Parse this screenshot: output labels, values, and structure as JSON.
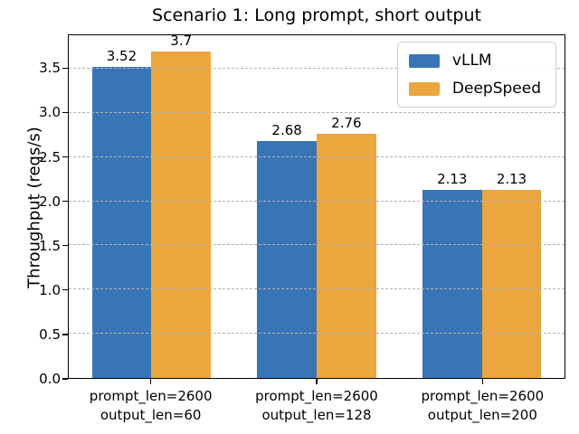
{
  "chart_data": {
    "type": "bar",
    "title": "Scenario 1: Long prompt, short output",
    "xlabel": "",
    "ylabel": "Throughput (reqs/s)",
    "categories": [
      [
        "prompt_len=2600",
        "output_len=60"
      ],
      [
        "prompt_len=2600",
        "output_len=128"
      ],
      [
        "prompt_len=2600",
        "output_len=200"
      ]
    ],
    "series": [
      {
        "name": "vLLM",
        "color": "#3875b7",
        "values": [
          3.52,
          2.68,
          2.13
        ],
        "value_labels": [
          "3.52",
          "2.68",
          "2.13"
        ]
      },
      {
        "name": "DeepSpeed",
        "color": "#eba63d",
        "values": [
          3.7,
          2.76,
          2.13
        ],
        "value_labels": [
          "3.7",
          "2.76",
          "2.13"
        ]
      }
    ],
    "ylim": [
      0,
      3.88
    ],
    "yticks": [
      0.0,
      0.5,
      1.0,
      1.5,
      2.0,
      2.5,
      3.0,
      3.5
    ],
    "grid": {
      "axis": "y",
      "line_style": "dashed",
      "color": "#b3b3b3",
      "drawn_above_bars": true
    },
    "legend_position": "upper right",
    "colors": {
      "background": "#ffffff",
      "text": "#000000",
      "axis": "#000000"
    }
  }
}
